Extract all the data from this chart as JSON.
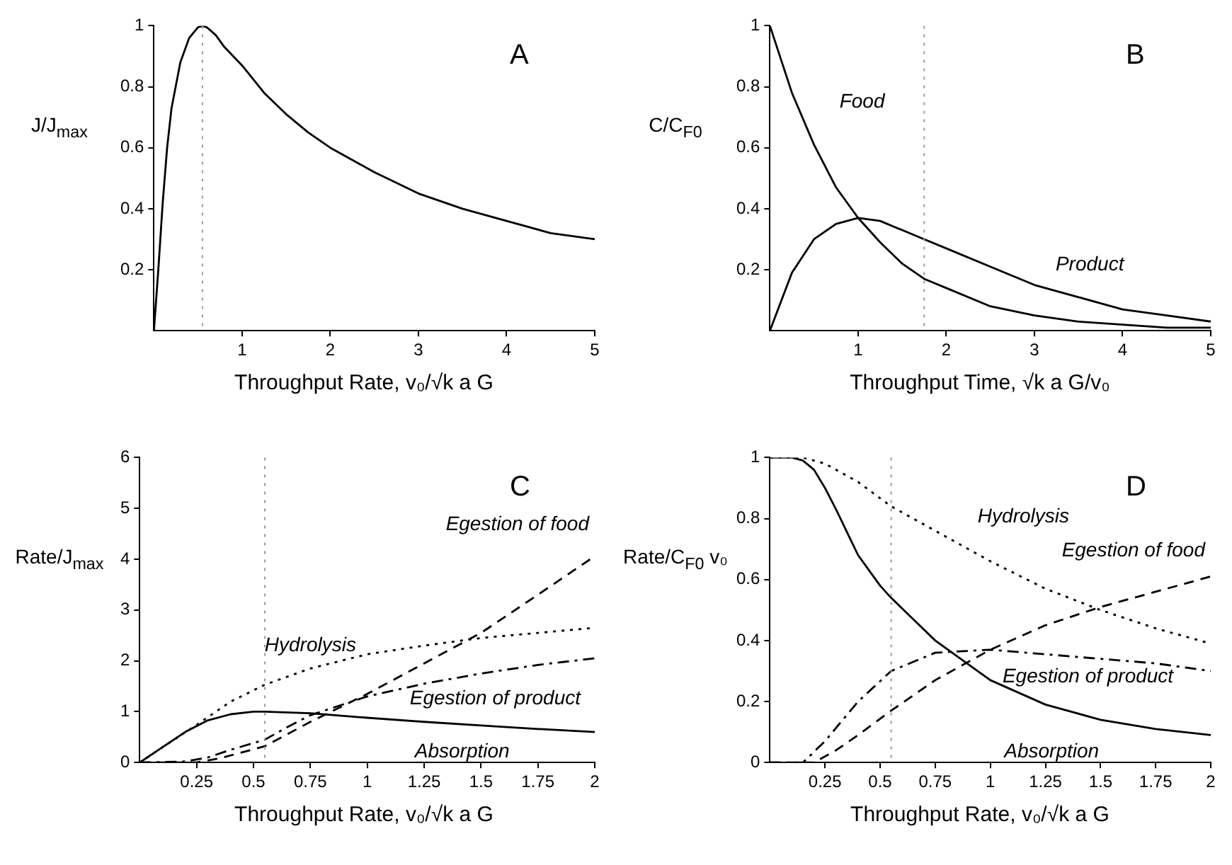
{
  "chart_data": [
    {
      "type": "line",
      "title": "A",
      "xlabel": "Throughput Rate, v₀/√k a G",
      "ylabel": "J/J$_{max}$",
      "xlim": [
        0,
        5
      ],
      "xticks": [
        1,
        2,
        3,
        4,
        5
      ],
      "ylim": [
        0,
        1
      ],
      "yticks": [
        0.2,
        0.4,
        0.6,
        0.8,
        1
      ],
      "grid": false,
      "legend": false,
      "series": [
        {
          "color": "#000000",
          "line_style": "solid",
          "x": [
            0,
            0.05,
            0.1,
            0.15,
            0.2,
            0.3,
            0.4,
            0.5,
            0.55,
            0.6,
            0.7,
            0.8,
            1,
            1.25,
            1.5,
            1.75,
            2,
            2.5,
            3,
            3.5,
            4,
            4.5,
            5
          ],
          "values": [
            0,
            0.2,
            0.42,
            0.6,
            0.73,
            0.88,
            0.96,
            0.995,
            1,
            0.995,
            0.97,
            0.93,
            0.87,
            0.78,
            0.71,
            0.65,
            0.6,
            0.52,
            0.45,
            0.4,
            0.36,
            0.32,
            0.3
          ]
        }
      ],
      "ref_lines": [
        {
          "axis": "x",
          "value": 0.55,
          "color": "#999999",
          "line_style": "dotted"
        }
      ]
    },
    {
      "type": "line",
      "title": "B",
      "xlabel": "Throughput Time, √k a G/v₀",
      "ylabel": "C/C$_{F0}$",
      "xlim": [
        0,
        5
      ],
      "xticks": [
        1,
        2,
        3,
        4,
        5
      ],
      "ylim": [
        0,
        1
      ],
      "yticks": [
        0.2,
        0.4,
        0.6,
        0.8,
        1
      ],
      "grid": false,
      "legend": false,
      "series": [
        {
          "name": "Food",
          "color": "#000000",
          "line_style": "solid",
          "x": [
            0,
            0.25,
            0.5,
            0.75,
            1,
            1.25,
            1.5,
            1.75,
            2,
            2.5,
            3,
            3.5,
            4,
            4.5,
            5
          ],
          "values": [
            1,
            0.78,
            0.61,
            0.47,
            0.37,
            0.29,
            0.22,
            0.17,
            0.14,
            0.08,
            0.05,
            0.03,
            0.02,
            0.01,
            0.01
          ]
        },
        {
          "name": "Product",
          "color": "#000000",
          "line_style": "solid",
          "x": [
            0,
            0.25,
            0.5,
            0.75,
            1,
            1.25,
            1.5,
            1.75,
            2,
            2.5,
            3,
            3.5,
            4,
            4.5,
            5
          ],
          "values": [
            0,
            0.19,
            0.3,
            0.35,
            0.37,
            0.36,
            0.33,
            0.3,
            0.27,
            0.21,
            0.15,
            0.11,
            0.07,
            0.05,
            0.03
          ]
        }
      ],
      "ref_lines": [
        {
          "axis": "x",
          "value": 1.75,
          "color": "#999999",
          "line_style": "dotted"
        }
      ]
    },
    {
      "type": "line",
      "title": "C",
      "xlabel": "Throughput Rate, v₀/√k a G",
      "ylabel": "Rate/J$_{max}$",
      "xlim": [
        0,
        2
      ],
      "xticks": [
        0.25,
        0.5,
        0.75,
        1,
        1.25,
        1.5,
        1.75,
        2
      ],
      "ylim": [
        0,
        6
      ],
      "yticks": [
        0,
        1,
        2,
        3,
        4,
        5,
        6
      ],
      "grid": false,
      "legend": false,
      "series": [
        {
          "name": "Absorption",
          "color": "#000000",
          "line_style": "solid",
          "x": [
            0,
            0.1,
            0.2,
            0.3,
            0.4,
            0.5,
            0.55,
            0.75,
            1,
            1.25,
            1.5,
            1.75,
            2
          ],
          "values": [
            0,
            0.3,
            0.6,
            0.83,
            0.95,
            1,
            1,
            0.97,
            0.88,
            0.8,
            0.73,
            0.66,
            0.6
          ]
        },
        {
          "name": "Hydrolysis",
          "color": "#000000",
          "line_style": "dotted",
          "x": [
            0,
            0.1,
            0.25,
            0.4,
            0.55,
            0.75,
            1,
            1.25,
            1.5,
            1.75,
            2
          ],
          "values": [
            0,
            0.3,
            0.74,
            1.2,
            1.53,
            1.85,
            2.13,
            2.3,
            2.45,
            2.55,
            2.65
          ]
        },
        {
          "name": "Egestion of product",
          "color": "#000000",
          "line_style": "dashdot",
          "x": [
            0,
            0.2,
            0.3,
            0.4,
            0.55,
            0.65,
            0.75,
            1,
            1.25,
            1.5,
            1.75,
            2
          ],
          "values": [
            0,
            0.02,
            0.1,
            0.25,
            0.45,
            0.7,
            0.93,
            1.3,
            1.55,
            1.75,
            1.92,
            2.05
          ]
        },
        {
          "name": "Egestion of food",
          "color": "#000000",
          "line_style": "dashed",
          "x": [
            0,
            0.25,
            0.35,
            0.55,
            0.75,
            1,
            1.25,
            1.5,
            1.75,
            2
          ],
          "values": [
            0,
            0,
            0.08,
            0.32,
            0.8,
            1.35,
            1.95,
            2.55,
            3.3,
            4.06
          ]
        }
      ],
      "ref_lines": [
        {
          "axis": "x",
          "value": 0.55,
          "color": "#999999",
          "line_style": "dotted"
        }
      ]
    },
    {
      "type": "line",
      "title": "D",
      "xlabel": "Throughput Rate, v₀/√k a G",
      "ylabel": "Rate/C$_{F0}$ v₀",
      "xlim": [
        0,
        2
      ],
      "xticks": [
        0.25,
        0.5,
        0.75,
        1,
        1.25,
        1.5,
        1.75,
        2
      ],
      "ylim": [
        0,
        1
      ],
      "yticks": [
        0,
        0.2,
        0.4,
        0.6,
        0.8,
        1
      ],
      "grid": false,
      "legend": false,
      "series": [
        {
          "name": "Absorption",
          "color": "#000000",
          "line_style": "solid",
          "x": [
            0,
            0.1,
            0.15,
            0.2,
            0.25,
            0.3,
            0.4,
            0.5,
            0.55,
            0.75,
            1,
            1.25,
            1.5,
            1.75,
            2
          ],
          "values": [
            1,
            1,
            0.99,
            0.96,
            0.9,
            0.83,
            0.68,
            0.58,
            0.54,
            0.4,
            0.27,
            0.19,
            0.14,
            0.11,
            0.09
          ]
        },
        {
          "name": "Hydrolysis",
          "color": "#000000",
          "line_style": "dotted",
          "x": [
            0,
            0.15,
            0.25,
            0.4,
            0.55,
            0.75,
            1,
            1.25,
            1.5,
            1.75,
            2
          ],
          "values": [
            1,
            1,
            0.98,
            0.92,
            0.84,
            0.76,
            0.66,
            0.57,
            0.5,
            0.44,
            0.39
          ]
        },
        {
          "name": "Egestion of product",
          "color": "#000000",
          "line_style": "dashdot",
          "x": [
            0,
            0.15,
            0.25,
            0.4,
            0.55,
            0.75,
            1,
            1.25,
            1.5,
            1.75,
            2
          ],
          "values": [
            0,
            0,
            0.07,
            0.2,
            0.3,
            0.36,
            0.37,
            0.355,
            0.34,
            0.325,
            0.3
          ]
        },
        {
          "name": "Egestion of food",
          "color": "#000000",
          "line_style": "dashed",
          "x": [
            0,
            0.2,
            0.3,
            0.4,
            0.55,
            0.75,
            1,
            1.25,
            1.5,
            1.75,
            2
          ],
          "values": [
            0,
            0,
            0.04,
            0.09,
            0.17,
            0.27,
            0.37,
            0.45,
            0.51,
            0.56,
            0.61
          ]
        }
      ],
      "ref_lines": [
        {
          "axis": "x",
          "value": 0.55,
          "color": "#999999",
          "line_style": "dotted"
        }
      ]
    }
  ]
}
